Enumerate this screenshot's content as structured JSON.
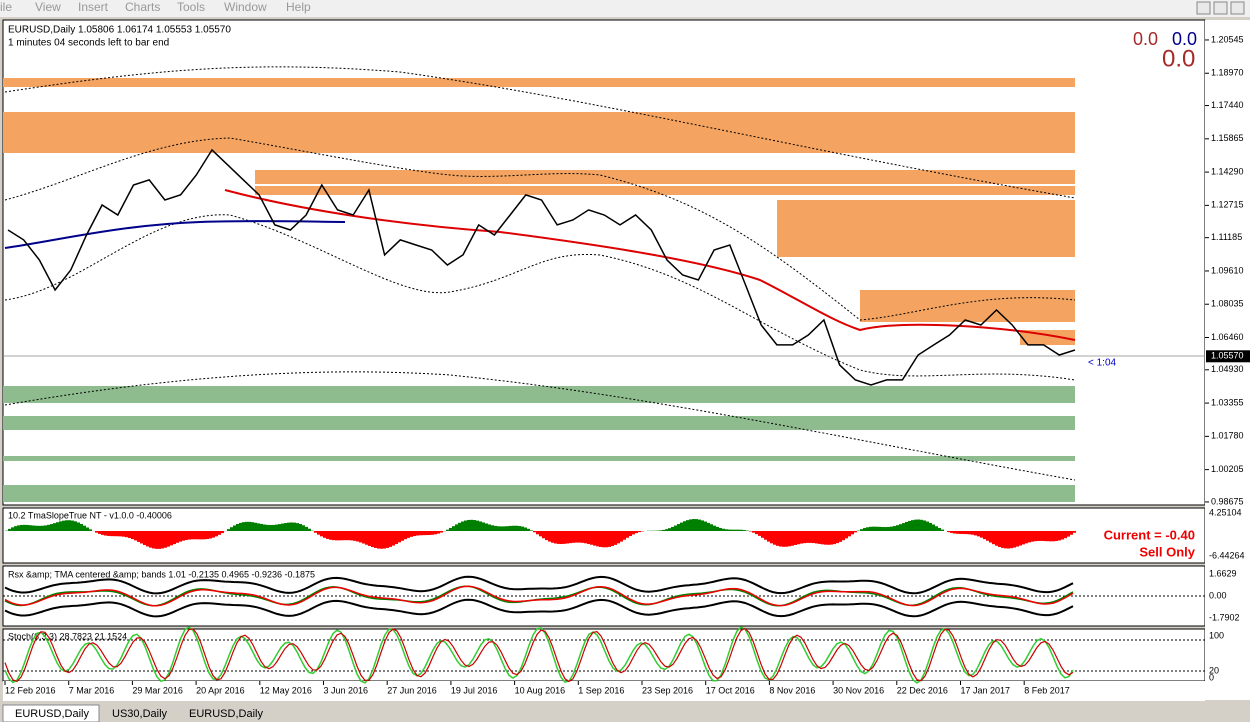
{
  "menu": [
    "ile",
    "View",
    "Insert",
    "Charts",
    "Tools",
    "Window",
    "Help"
  ],
  "header": {
    "symbol_line": "EURUSD,Daily  1.05806 1.06174 1.05553 1.05570",
    "timer": "1 minutes 04 seconds left to bar end",
    "spread_left": "0.0",
    "spread_right": "0.0",
    "big_value": "0.0",
    "bar_countdown": "< 1:04"
  },
  "price_chart": {
    "ylim": [
      0.9853,
      1.2149
    ],
    "yticks": [
      1.20545,
      {
        "value": 1.1897,
        "label": "1.18970"
      },
      {
        "value": 1.1744,
        "label": "1.17440"
      },
      1.15865,
      {
        "value": 1.1429,
        "label": "1.14290"
      },
      1.12715,
      1.11185,
      {
        "value": 1.0961,
        "label": "1.09610"
      },
      1.08035,
      {
        "value": 1.0646,
        "label": "1.06460"
      },
      {
        "value": 1.0493,
        "label": "1.04930"
      },
      1.03355,
      {
        "value": 1.0178,
        "label": "1.01780"
      },
      1.00205,
      0.98675
    ],
    "current": {
      "value": 1.0557,
      "label": "1.05570"
    },
    "closes": [
      1.1155,
      1.1108,
      1.1013,
      1.0871,
      1.0966,
      1.1131,
      1.1273,
      1.1226,
      1.1368,
      1.1392,
      1.1297,
      1.1321,
      1.1415,
      1.1534,
      1.1463,
      1.1392,
      1.1321,
      1.1179,
      1.1155,
      1.1226,
      1.1368,
      1.125,
      1.1226,
      1.1344,
      1.1037,
      1.1108,
      1.1084,
      1.106,
      1.0989,
      1.1037,
      1.1179,
      1.1131,
      1.1226,
      1.1321,
      1.1297,
      1.1179,
      1.1202,
      1.125,
      1.1226,
      1.1179,
      1.1226,
      1.1155,
      1.1013,
      1.0942,
      1.0918,
      1.106,
      1.1084,
      1.0895,
      1.0705,
      1.0611,
      1.0611,
      1.0658,
      1.0729,
      1.0516,
      1.0445,
      1.0421,
      1.0445,
      1.0445,
      1.0563,
      1.0611,
      1.0658,
      1.0729,
      1.0705,
      1.0776,
      1.0705,
      1.0611,
      1.0611,
      1.0563,
      1.0587
    ],
    "color": "#000000"
  },
  "dates": [
    "12 Feb 2016",
    "7 Mar 2016",
    "29 Mar 2016",
    "20 Apr 2016",
    "12 May 2016",
    "3 Jun 2016",
    "27 Jun 2016",
    "19 Jul 2016",
    "10 Aug 2016",
    "1 Sep 2016",
    "23 Sep 2016",
    "17 Oct 2016",
    "8 Nov 2016",
    "30 Nov 2016",
    "22 Dec 2016",
    "17 Jan 2017",
    "8 Feb 2017"
  ],
  "indicators": [
    {
      "label": "10.2 TmaSlopeTrue NT  -  v1.0.0     -0.40006",
      "axis": [
        "4.25104",
        "-6.44264"
      ],
      "notes": [
        "Current = -0.40",
        "Sell Only"
      ]
    },
    {
      "label": "Rsx &amp; TMA centered &amp; bands 1.01 -0.2135 0.4965 -0.9236 -0.1875",
      "axis": [
        "1.6629",
        "0.00",
        "-1.7902"
      ]
    },
    {
      "label": "Stoch(6,3,3) 28.7823 21.1524",
      "axis": [
        "100",
        "20",
        "0"
      ]
    }
  ],
  "tabs": [
    "EURUSD,Daily",
    "US30,Daily",
    "EURUSD,Daily"
  ]
}
